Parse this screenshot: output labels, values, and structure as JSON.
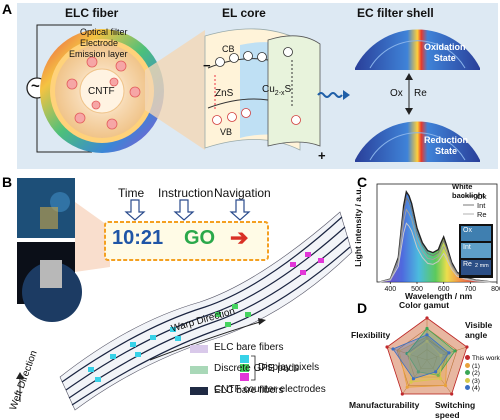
{
  "panelA": {
    "label": "A",
    "titles": {
      "fiber": "ELC fiber",
      "core": "EL core",
      "shell": "EC filter shell"
    },
    "layers": {
      "optical_filter": "Optical filter",
      "electrode": "Electrode",
      "emission": "Emission layer",
      "cntf": "CNTF"
    },
    "band": {
      "cb": "CB",
      "vb": "VB",
      "zns": "ZnS",
      "cu": "Cu",
      "cu_sub": "2-x",
      "s": "S",
      "minus": "−",
      "plus": "+"
    },
    "ac_symbol": "~",
    "states": {
      "oxidation": "Oxidation\nState",
      "ox": "Ox",
      "re": "Re",
      "reduction": "Reduction\nState"
    },
    "colors": {
      "bg": "#dde9f3",
      "accent": "#1f5fa8"
    }
  },
  "panelB": {
    "label": "B",
    "headings": {
      "time": "Time",
      "instruction": "Instruction",
      "navigation": "Navigation"
    },
    "display": {
      "time": "10:21",
      "go": "GO",
      "arrow": "➔"
    },
    "directions": {
      "warp": "Warp Direction",
      "weft": "Weft Direction"
    },
    "display_pixels": "Display pixels",
    "legend": [
      "ELC bare fibers",
      "Discrete GPE pads",
      "CNTF counter electrodes"
    ],
    "legend_colors": [
      "#d9c9ea",
      "#a9d8b8",
      "#1f2a44"
    ]
  },
  "panelC": {
    "label": "C",
    "chart_data": {
      "type": "line",
      "title": "",
      "xlabel": "Wavelength / nm",
      "ylabel": "Light intensity / a.u.",
      "xlim": [
        350,
        800
      ],
      "xticks": [
        400,
        500,
        600,
        700,
        800
      ],
      "series": [
        {
          "name": "White backlight",
          "color": "#222222",
          "x": [
            360,
            400,
            430,
            450,
            460,
            470,
            480,
            500,
            520,
            540,
            560,
            580,
            590,
            600,
            610,
            630,
            650,
            680,
            720,
            780
          ],
          "y": [
            0.0,
            0.03,
            0.25,
            0.78,
            0.92,
            0.88,
            0.8,
            0.55,
            0.4,
            0.32,
            0.3,
            0.33,
            0.4,
            0.46,
            0.38,
            0.2,
            0.1,
            0.05,
            0.02,
            0.0
          ]
        },
        {
          "name": "Ox",
          "color": "#7a7a7a",
          "x": [
            360,
            400,
            430,
            450,
            460,
            470,
            480,
            500,
            520,
            540,
            560,
            580,
            590,
            600,
            610,
            630,
            650,
            680,
            720,
            780
          ],
          "y": [
            0.0,
            0.03,
            0.23,
            0.72,
            0.86,
            0.82,
            0.74,
            0.5,
            0.37,
            0.29,
            0.27,
            0.3,
            0.36,
            0.42,
            0.35,
            0.18,
            0.09,
            0.04,
            0.02,
            0.0
          ]
        },
        {
          "name": "Int",
          "color": "#a0a0a0",
          "x": [
            360,
            400,
            430,
            450,
            460,
            470,
            480,
            500,
            520,
            540,
            560,
            580,
            590,
            600,
            610,
            630,
            650,
            680,
            720,
            780
          ],
          "y": [
            0.0,
            0.02,
            0.2,
            0.62,
            0.74,
            0.7,
            0.64,
            0.43,
            0.31,
            0.24,
            0.23,
            0.26,
            0.31,
            0.36,
            0.3,
            0.16,
            0.08,
            0.04,
            0.01,
            0.0
          ]
        },
        {
          "name": "Re",
          "color": "#c8c8c8",
          "x": [
            360,
            400,
            430,
            450,
            460,
            470,
            480,
            500,
            520,
            540,
            560,
            580,
            590,
            600,
            610,
            630,
            650,
            680,
            720,
            780
          ],
          "y": [
            0.0,
            0.02,
            0.16,
            0.5,
            0.6,
            0.57,
            0.52,
            0.35,
            0.25,
            0.19,
            0.18,
            0.21,
            0.25,
            0.29,
            0.24,
            0.13,
            0.06,
            0.03,
            0.01,
            0.0
          ]
        }
      ],
      "legend_title": "White backlight",
      "legend": [
        "Ox",
        "Int",
        "Re"
      ],
      "inset": {
        "labels": [
          "Ox",
          "Int",
          "Re"
        ],
        "scale": "2 mm"
      }
    }
  },
  "panelD": {
    "label": "D",
    "chart_data": {
      "type": "radar",
      "title": "Color gamut",
      "axes": [
        "Color gamut",
        "Visible angle",
        "Switching speed",
        "Manufacturability",
        "Flexibility"
      ],
      "series": [
        {
          "name": "This work",
          "color": "#c0282d",
          "values": [
            1.0,
            1.0,
            1.0,
            1.0,
            1.0
          ]
        },
        {
          "name": "(1)",
          "color": "#e9a23b",
          "values": [
            0.55,
            0.5,
            0.75,
            0.8,
            0.7
          ]
        },
        {
          "name": "(2)",
          "color": "#3aa655",
          "values": [
            0.75,
            0.7,
            0.45,
            0.35,
            0.5
          ]
        },
        {
          "name": "(3)",
          "color": "#d6c94a",
          "values": [
            0.45,
            0.35,
            0.55,
            0.65,
            0.45
          ]
        },
        {
          "name": "(4)",
          "color": "#3a6fc4",
          "values": [
            0.6,
            0.55,
            0.35,
            0.55,
            0.85
          ]
        }
      ],
      "legend": [
        "This work",
        "(1)",
        "(2)",
        "(3)",
        "(4)"
      ]
    }
  }
}
